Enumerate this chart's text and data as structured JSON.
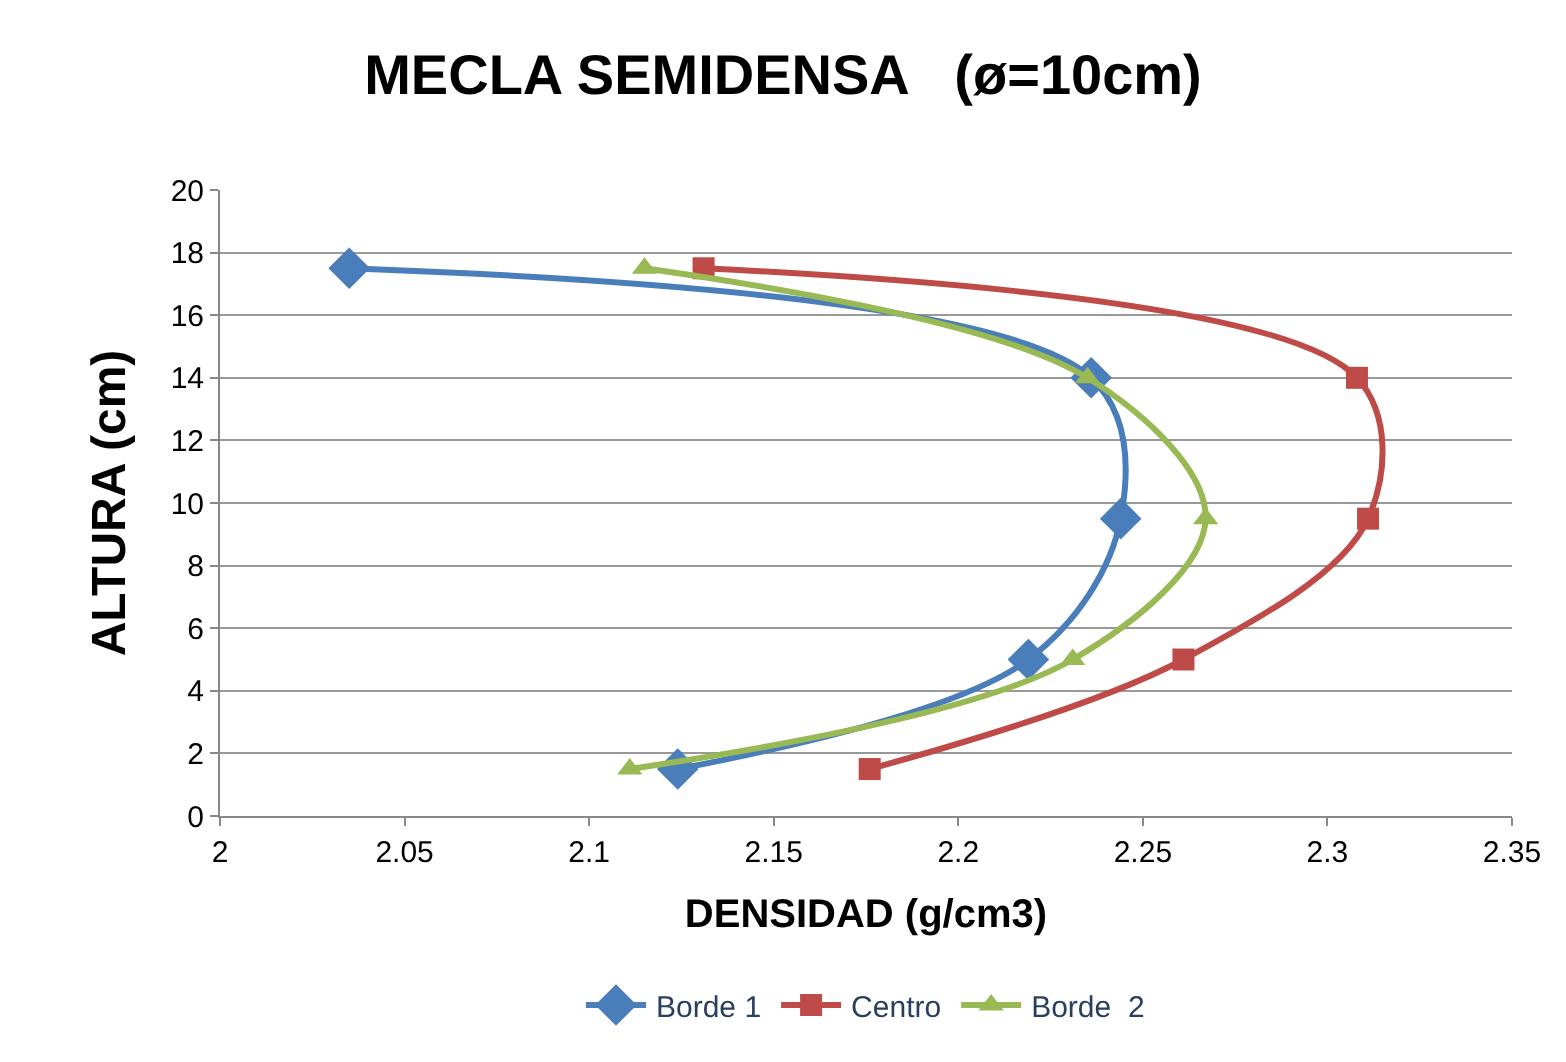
{
  "chart_data": {
    "type": "line",
    "title": "MECLA SEMIDENSA   (ø=10cm)",
    "xlabel": "DENSIDAD (g/cm3)",
    "ylabel": "ALTURA (cm)",
    "series": [
      {
        "name": "Borde 1",
        "color": "#4a7ebb",
        "marker": "diamond",
        "x": [
          2.035,
          2.236,
          2.244,
          2.219,
          2.124
        ],
        "values": [
          17.5,
          14,
          9.5,
          5,
          1.5
        ]
      },
      {
        "name": "Centro",
        "color": "#be4b48",
        "marker": "square",
        "x": [
          2.131,
          2.308,
          2.311,
          2.261,
          2.176
        ],
        "values": [
          17.5,
          14,
          9.5,
          5,
          1.5
        ]
      },
      {
        "name": "Borde  2",
        "color": "#98b954",
        "marker": "triangle",
        "x": [
          2.115,
          2.235,
          2.267,
          2.231,
          2.111
        ],
        "values": [
          17.5,
          14,
          9.5,
          5,
          1.5
        ]
      }
    ],
    "xlim": [
      2,
      2.35
    ],
    "xticks": [
      2,
      2.05,
      2.1,
      2.15,
      2.2,
      2.25,
      2.3,
      2.35
    ],
    "ylim": [
      0,
      20
    ],
    "yticks": [
      0,
      2,
      4,
      6,
      8,
      10,
      12,
      14,
      16,
      18,
      20
    ],
    "grid": "y",
    "legend": "bottom",
    "line_style": "solid"
  }
}
